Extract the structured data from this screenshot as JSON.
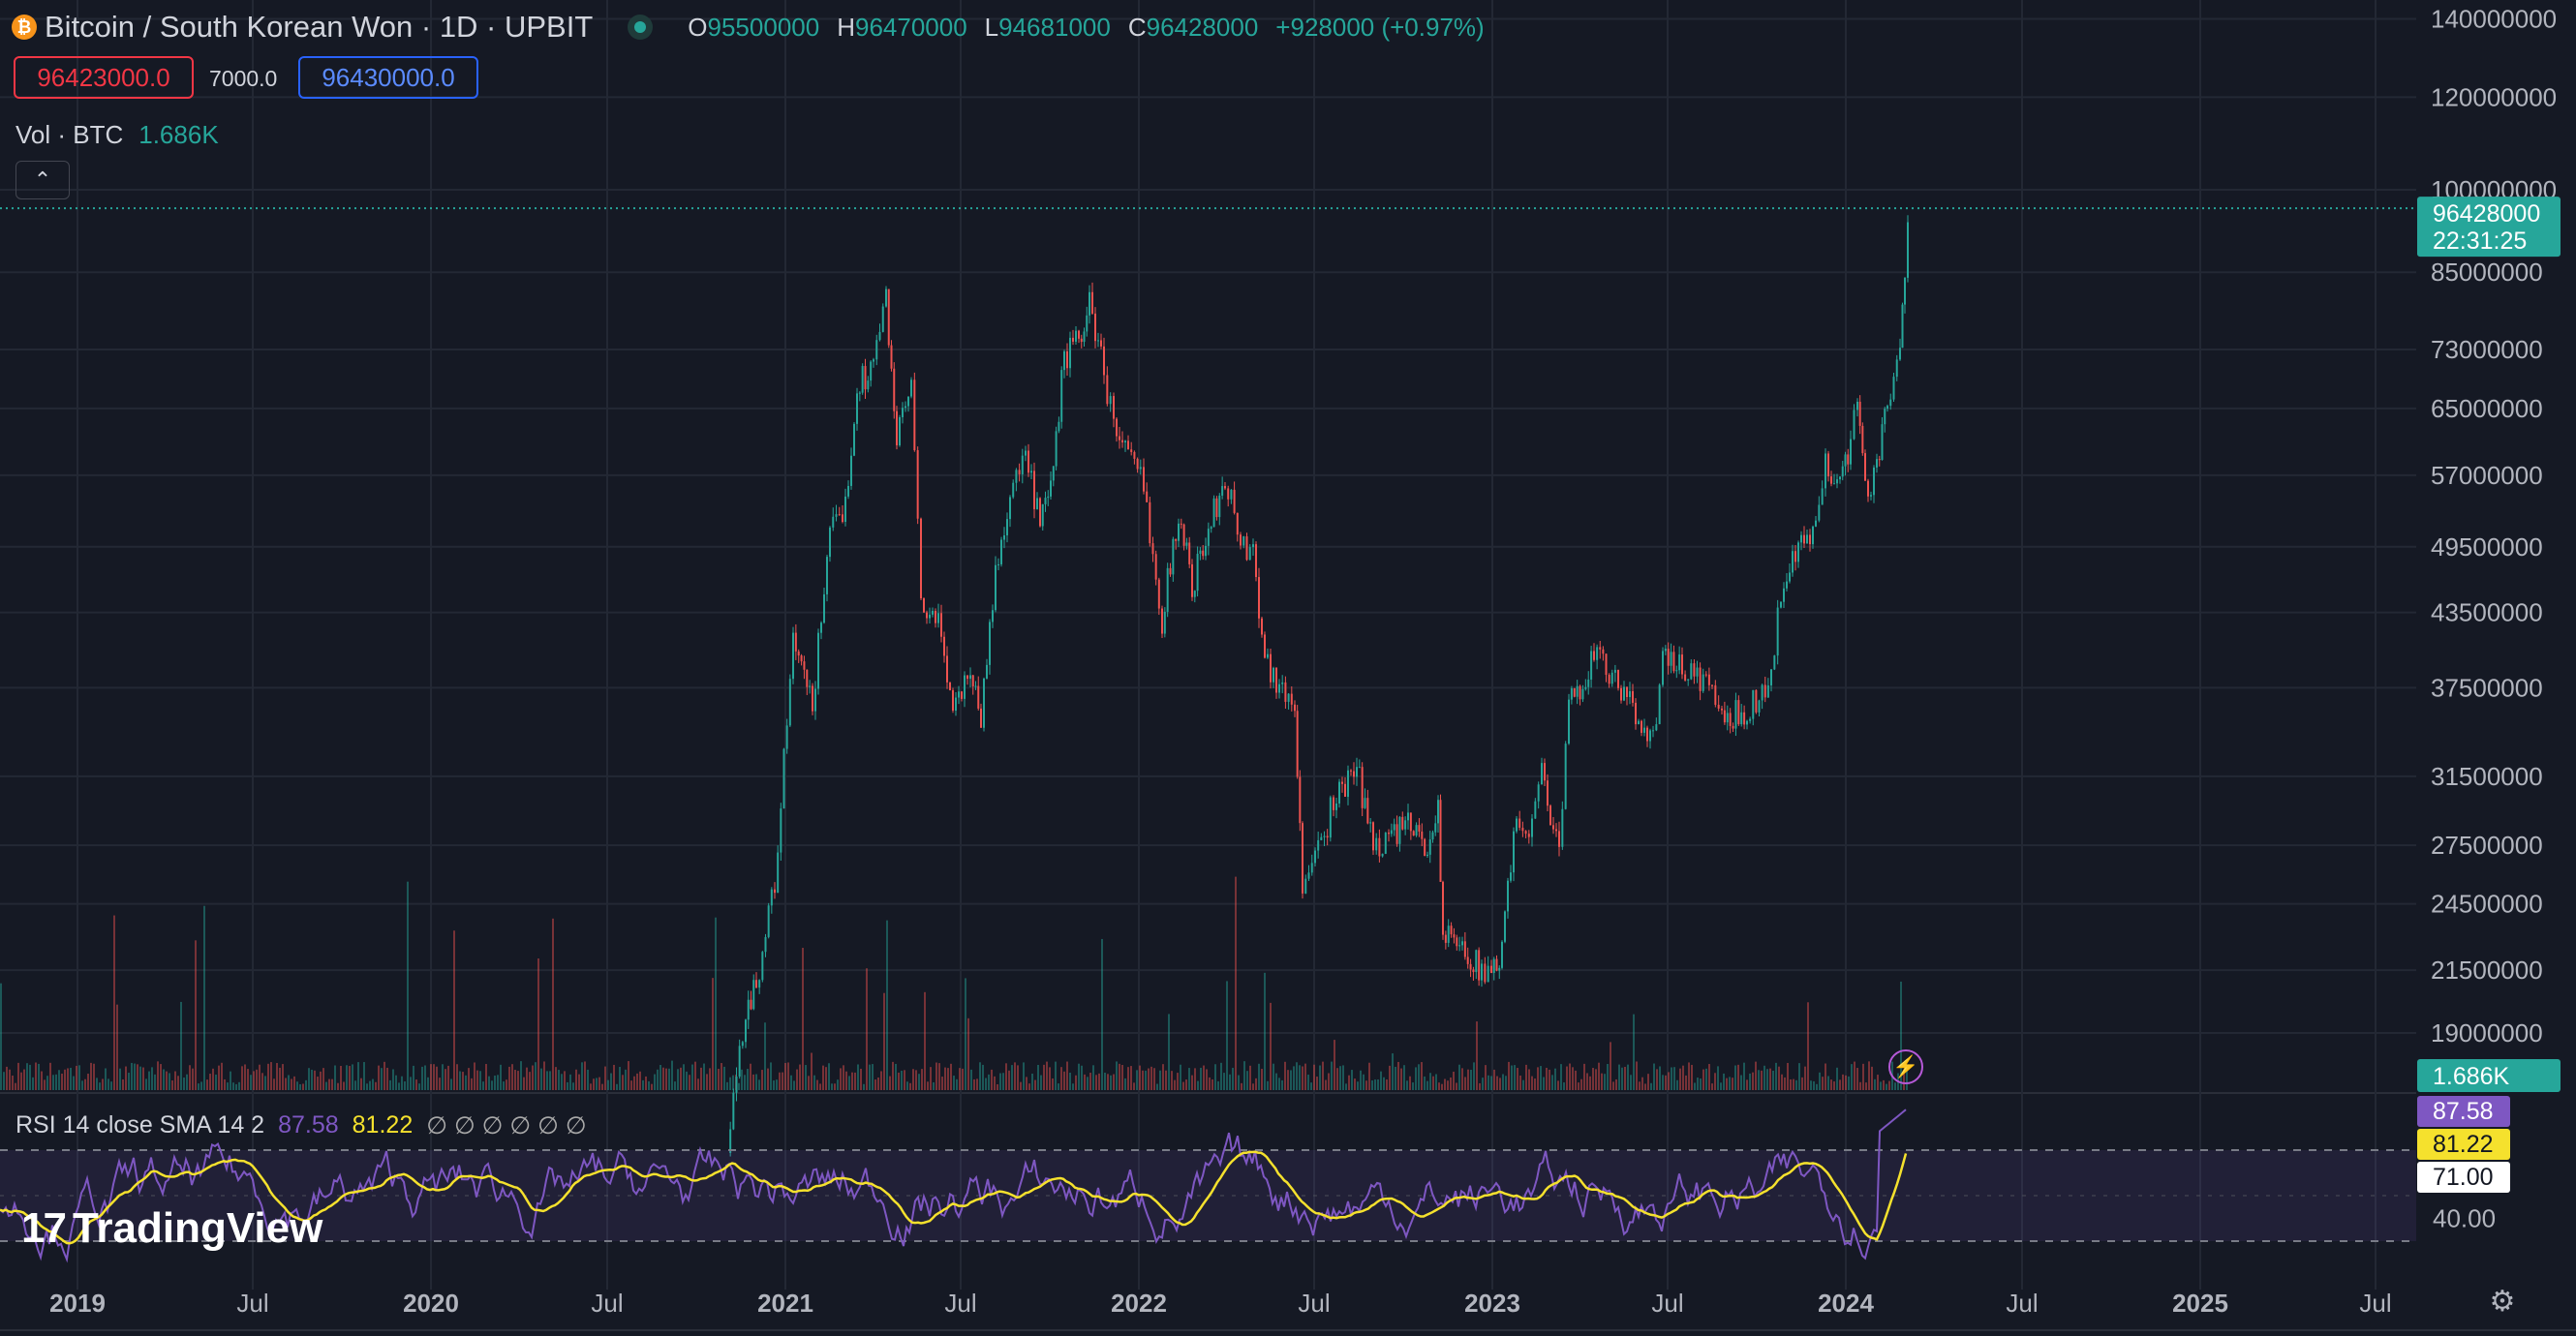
{
  "header": {
    "coin_icon": "bitcoin-coin-icon",
    "title": "Bitcoin / South Korean Won · 1D · UPBIT",
    "open_label": "O",
    "open": "95500000",
    "high_label": "H",
    "high": "96470000",
    "low_label": "L",
    "low": "94681000",
    "close_label": "C",
    "close": "96428000",
    "change": "+928000 (+0.97%)"
  },
  "trade": {
    "sell": "96423000.0",
    "spread": "7000.0",
    "buy": "96430000.0"
  },
  "volume_legend": {
    "label": "Vol · BTC",
    "value": "1.686K"
  },
  "collapse_icon": "chevron-up-icon",
  "rsi_legend": {
    "label": "RSI 14 close SMA 14 2",
    "rsi": "87.58",
    "sma": "81.22",
    "placeholders": "∅ ∅ ∅ ∅ ∅ ∅"
  },
  "branding": {
    "logo_text": "TradingView"
  },
  "icons": {
    "replay": "lightning-icon",
    "settings": "gear-icon"
  },
  "colors": {
    "up": "#26a69a",
    "down": "#ef5350",
    "rsi": "#7e57c2",
    "sma": "#f5e12d",
    "background": "#151924"
  },
  "chart_data": [
    {
      "type": "candlestick",
      "title": "Bitcoin / South Korean Won · 1D · UPBIT",
      "y_scale": "log",
      "y_ticks": [
        140000000,
        120000000,
        100000000,
        85000000,
        73000000,
        65000000,
        57000000,
        49500000,
        43500000,
        37500000,
        31500000,
        27500000,
        24500000,
        21500000,
        19000000
      ],
      "y_tick_labels": [
        "140000000",
        "120000000",
        "100000000",
        "85000000",
        "73000000",
        "65000000",
        "57000000",
        "49500000",
        "43500000",
        "37500000",
        "31500000",
        "27500000",
        "24500000",
        "21500000",
        "19000000"
      ],
      "x_tick_labels": [
        {
          "label": "2019",
          "date": "2019-01-01",
          "bold": true
        },
        {
          "label": "Jul",
          "date": "2019-07-01",
          "bold": false
        },
        {
          "label": "2020",
          "date": "2020-01-01",
          "bold": true
        },
        {
          "label": "Jul",
          "date": "2020-07-01",
          "bold": false
        },
        {
          "label": "2021",
          "date": "2021-01-01",
          "bold": true
        },
        {
          "label": "Jul",
          "date": "2021-07-01",
          "bold": false
        },
        {
          "label": "2022",
          "date": "2022-01-01",
          "bold": true
        },
        {
          "label": "Jul",
          "date": "2022-07-01",
          "bold": false
        },
        {
          "label": "2023",
          "date": "2023-01-01",
          "bold": true
        },
        {
          "label": "Jul",
          "date": "2023-07-01",
          "bold": false
        },
        {
          "label": "2024",
          "date": "2024-01-01",
          "bold": true
        },
        {
          "label": "Jul",
          "date": "2024-07-01",
          "bold": false
        },
        {
          "label": "2025",
          "date": "2025-01-01",
          "bold": true
        },
        {
          "label": "Jul",
          "date": "2025-07-01",
          "bold": false
        }
      ],
      "close_series": [
        {
          "date": "2020-11-01",
          "close": 15000000
        },
        {
          "date": "2020-11-20",
          "close": 20000000
        },
        {
          "date": "2020-12-01",
          "close": 21000000
        },
        {
          "date": "2020-12-20",
          "close": 25500000
        },
        {
          "date": "2021-01-08",
          "close": 41000000
        },
        {
          "date": "2021-01-28",
          "close": 36000000
        },
        {
          "date": "2021-02-15",
          "close": 52000000
        },
        {
          "date": "2021-02-28",
          "close": 51000000
        },
        {
          "date": "2021-03-15",
          "close": 68000000
        },
        {
          "date": "2021-04-01",
          "close": 71000000
        },
        {
          "date": "2021-04-14",
          "close": 81000000
        },
        {
          "date": "2021-04-25",
          "close": 61000000
        },
        {
          "date": "2021-05-10",
          "close": 68000000
        },
        {
          "date": "2021-05-20",
          "close": 44000000
        },
        {
          "date": "2021-06-10",
          "close": 42000000
        },
        {
          "date": "2021-06-22",
          "close": 36000000
        },
        {
          "date": "2021-07-10",
          "close": 39000000
        },
        {
          "date": "2021-07-21",
          "close": 35500000
        },
        {
          "date": "2021-08-05",
          "close": 47000000
        },
        {
          "date": "2021-08-20",
          "close": 55000000
        },
        {
          "date": "2021-09-05",
          "close": 59000000
        },
        {
          "date": "2021-09-20",
          "close": 51500000
        },
        {
          "date": "2021-10-01",
          "close": 55000000
        },
        {
          "date": "2021-10-15",
          "close": 72000000
        },
        {
          "date": "2021-10-30",
          "close": 74000000
        },
        {
          "date": "2021-11-10",
          "close": 80000000
        },
        {
          "date": "2021-11-25",
          "close": 70000000
        },
        {
          "date": "2021-12-05",
          "close": 63000000
        },
        {
          "date": "2021-12-20",
          "close": 59000000
        },
        {
          "date": "2022-01-05",
          "close": 56000000
        },
        {
          "date": "2022-01-24",
          "close": 43000000
        },
        {
          "date": "2022-02-10",
          "close": 53000000
        },
        {
          "date": "2022-02-24",
          "close": 46000000
        },
        {
          "date": "2022-03-10",
          "close": 50000000
        },
        {
          "date": "2022-03-30",
          "close": 57000000
        },
        {
          "date": "2022-04-15",
          "close": 50000000
        },
        {
          "date": "2022-04-28",
          "close": 49000000
        },
        {
          "date": "2022-05-10",
          "close": 40000000
        },
        {
          "date": "2022-05-25",
          "close": 37500000
        },
        {
          "date": "2022-06-10",
          "close": 36000000
        },
        {
          "date": "2022-06-18",
          "close": 25500000
        },
        {
          "date": "2022-07-01",
          "close": 26500000
        },
        {
          "date": "2022-07-20",
          "close": 30000000
        },
        {
          "date": "2022-08-13",
          "close": 32000000
        },
        {
          "date": "2022-08-30",
          "close": 27500000
        },
        {
          "date": "2022-09-15",
          "close": 28000000
        },
        {
          "date": "2022-10-05",
          "close": 28500000
        },
        {
          "date": "2022-10-25",
          "close": 27500000
        },
        {
          "date": "2022-11-05",
          "close": 29500000
        },
        {
          "date": "2022-11-10",
          "close": 23000000
        },
        {
          "date": "2022-11-30",
          "close": 22500000
        },
        {
          "date": "2022-12-20",
          "close": 21500000
        },
        {
          "date": "2022-12-30",
          "close": 21000000
        },
        {
          "date": "2023-01-10",
          "close": 22500000
        },
        {
          "date": "2023-01-25",
          "close": 29000000
        },
        {
          "date": "2023-02-10",
          "close": 28500000
        },
        {
          "date": "2023-02-20",
          "close": 32000000
        },
        {
          "date": "2023-03-10",
          "close": 27000000
        },
        {
          "date": "2023-03-20",
          "close": 36000000
        },
        {
          "date": "2023-04-15",
          "close": 40000000
        },
        {
          "date": "2023-05-10",
          "close": 37500000
        },
        {
          "date": "2023-06-15",
          "close": 34000000
        },
        {
          "date": "2023-06-25",
          "close": 39500000
        },
        {
          "date": "2023-07-15",
          "close": 39000000
        },
        {
          "date": "2023-08-15",
          "close": 37500000
        },
        {
          "date": "2023-08-25",
          "close": 35000000
        },
        {
          "date": "2023-09-20",
          "close": 36000000
        },
        {
          "date": "2023-10-15",
          "close": 38000000
        },
        {
          "date": "2023-10-25",
          "close": 45500000
        },
        {
          "date": "2023-11-15",
          "close": 49500000
        },
        {
          "date": "2023-11-30",
          "close": 51000000
        },
        {
          "date": "2023-12-10",
          "close": 58000000
        },
        {
          "date": "2023-12-25",
          "close": 57000000
        },
        {
          "date": "2024-01-05",
          "close": 61000000
        },
        {
          "date": "2024-01-12",
          "close": 67000000
        },
        {
          "date": "2024-01-20",
          "close": 55000000
        },
        {
          "date": "2024-02-01",
          "close": 58000000
        },
        {
          "date": "2024-02-12",
          "close": 65000000
        },
        {
          "date": "2024-02-25",
          "close": 72000000
        },
        {
          "date": "2024-03-01",
          "close": 86000000
        },
        {
          "date": "2024-03-04",
          "close": 96428000
        }
      ],
      "last_price": {
        "price": "96428000",
        "countdown": "22:31:25"
      },
      "volume_label": "1.686K"
    },
    {
      "type": "line",
      "title": "RSI 14 close SMA 14 2",
      "series": [
        {
          "name": "RSI",
          "last": 87.58
        },
        {
          "name": "SMA",
          "last": 81.22
        }
      ],
      "y_tick_labels": [
        "40.00"
      ],
      "band": [
        30,
        70
      ],
      "marker_labels": [
        "87.58",
        "81.22",
        "71.00"
      ]
    }
  ]
}
